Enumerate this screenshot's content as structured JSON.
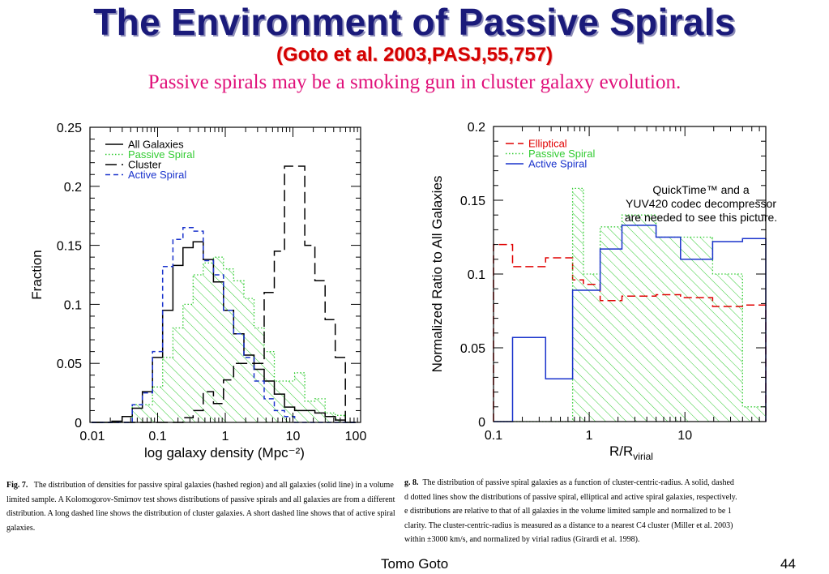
{
  "slide": {
    "title": "The Environment of Passive Spirals",
    "citation": "(Goto et al. 2003,PASJ,55,757)",
    "subtitle": "Passive spirals may be a smoking gun in cluster galaxy evolution.",
    "quicktime_notice": [
      "QuickTime™ and a",
      "YUV420 codec decompressor",
      "are needed to see this picture."
    ],
    "footer_author": "Tomo Goto",
    "footer_page": "44"
  },
  "captions": {
    "fig7_label": "Fig. 7.",
    "fig7_text": "The distribution of densities for passive spiral galaxies (hashed region) and all galaxies (solid line) in a volume limited sample. A Kolomogorov-Smirnov test shows distributions of passive spirals and all galaxies are from a different distribution. A long dashed line shows the distribution of cluster galaxies. A short dashed line shows that of active spiral galaxies.",
    "fig8_label": "g. 8.",
    "fig8_lines": [
      "The distribution of passive spiral galaxies as a function of cluster-centric-radius. A solid, dashed",
      "d dotted lines show the distributions of passive spiral, elliptical and active spiral galaxies, respectively.",
      "e distributions are relative to that of all galaxies in the volume limited sample and normalized to be 1",
      "clarity. The cluster-centric-radius is measured as a distance to a nearest C4 cluster (Miller et al. 2003)",
      "within ±3000 km/s, and normalized by virial radius (Girardi et al. 1998)."
    ]
  },
  "chart_data": [
    {
      "type": "histogram",
      "xlabel": "log galaxy density (Mpc⁻²)",
      "ylabel": "Fraction",
      "xscale": "log",
      "xlim": [
        0.01,
        100
      ],
      "ylim": [
        0,
        0.25
      ],
      "xticks": [
        0.01,
        0.1,
        1,
        10,
        100
      ],
      "xtick_labels": [
        "0.01",
        "0.1",
        "1",
        "10",
        "100"
      ],
      "yticks": [
        0,
        0.05,
        0.1,
        0.15,
        0.2,
        0.25
      ],
      "ytick_labels": [
        "0",
        "0.05",
        "0.1",
        "0.15",
        "0.2",
        "0.25"
      ],
      "legend_position": "top-left",
      "x": [
        0.0126,
        0.0178,
        0.0251,
        0.0355,
        0.0501,
        0.0708,
        0.1,
        0.141,
        0.2,
        0.282,
        0.398,
        0.562,
        0.794,
        1.12,
        1.58,
        2.24,
        3.16,
        4.47,
        6.31,
        8.91,
        12.6,
        17.8,
        25.1,
        35.5,
        50.1,
        70.8
      ],
      "series": [
        {
          "name": "All Galaxies",
          "style": "solid",
          "color": "#000000",
          "values": [
            0,
            0,
            0.001,
            0.005,
            0.012,
            0.026,
            0.055,
            0.095,
            0.133,
            0.148,
            0.153,
            0.138,
            0.119,
            0.095,
            0.075,
            0.057,
            0.045,
            0.035,
            0.024,
            0.013,
            0.01,
            0.01,
            0.008,
            0.005,
            0.002,
            0
          ]
        },
        {
          "name": "Passive Spiral",
          "style": "dotted",
          "color": "#33cc33",
          "hatched": true,
          "values": [
            0,
            0,
            0,
            0,
            0.015,
            0.015,
            0.03,
            0.055,
            0.08,
            0.1,
            0.125,
            0.135,
            0.14,
            0.13,
            0.12,
            0.105,
            0.08,
            0.06,
            0.035,
            0.035,
            0.042,
            0.018,
            0.02,
            0.008,
            0.006,
            0
          ]
        },
        {
          "name": "Cluster",
          "style": "long-dashed",
          "color": "#000000",
          "values": [
            0,
            0,
            0,
            0,
            0,
            0,
            0,
            0,
            0,
            0.004,
            0.01,
            0.026,
            0.016,
            0.036,
            0.05,
            0.05,
            0.05,
            0.11,
            0.145,
            0.217,
            0.217,
            0.15,
            0.12,
            0.087,
            0.055,
            0
          ]
        },
        {
          "name": "Active Spiral",
          "style": "short-dashed",
          "color": "#1a33cc",
          "values": [
            0,
            0,
            0,
            0,
            0.015,
            0.025,
            0.06,
            0.132,
            0.155,
            0.165,
            0.162,
            0.137,
            0.125,
            0.095,
            0.075,
            0.055,
            0.035,
            0.02,
            0.01,
            0.005,
            0,
            0,
            0,
            0,
            0,
            0
          ]
        }
      ]
    },
    {
      "type": "histogram",
      "xlabel": "R/R",
      "xlabel_sub": "virial",
      "ylabel": "Normalized Ratio to All Galaxies",
      "xscale": "log",
      "xlim": [
        0.1,
        70
      ],
      "ylim": [
        0,
        0.2
      ],
      "xticks": [
        0.1,
        1,
        10
      ],
      "xtick_labels": [
        "0.1",
        "1",
        "10"
      ],
      "yticks": [
        0,
        0.05,
        0.1,
        0.15,
        0.2
      ],
      "ytick_labels": [
        "0",
        "0.05",
        "0.1",
        "0.15",
        "0.2"
      ],
      "legend_position": "top-left",
      "edges": [
        0.1,
        0.158,
        0.35,
        0.67,
        0.87,
        1.3,
        2.2,
        5.0,
        9.0,
        19.5,
        40,
        70
      ],
      "series": [
        {
          "name": "Elliptical",
          "style": "dashed",
          "color": "#e00000",
          "values": [
            0.12,
            0.105,
            0.111,
            0.096,
            0.093,
            0.082,
            0.085,
            0.086,
            0.084,
            0.078,
            0.079
          ]
        },
        {
          "name": "Passive Spiral",
          "style": "dotted",
          "color": "#33cc33",
          "hatched": true,
          "values": [
            0,
            0,
            0,
            0.158,
            0.1,
            0.132,
            0.14,
            0.125,
            0.125,
            0.1,
            0.01
          ]
        },
        {
          "name": "Active Spiral",
          "style": "solid",
          "color": "#1a33cc",
          "values": [
            0,
            0.057,
            0.029,
            0.089,
            0.089,
            0.117,
            0.133,
            0.125,
            0.11,
            0.122,
            0.124
          ]
        }
      ]
    }
  ]
}
